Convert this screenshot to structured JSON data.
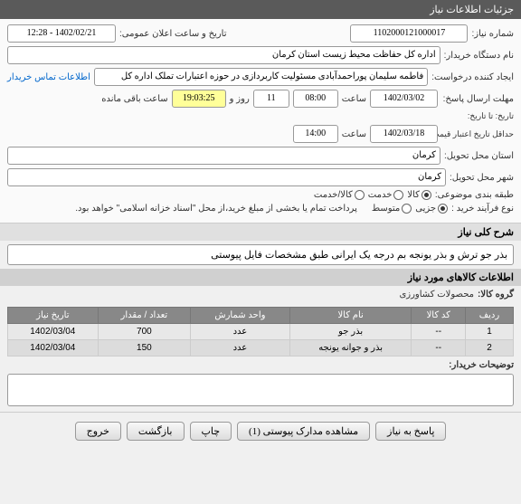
{
  "header": {
    "title": "جزئیات اطلاعات نیاز"
  },
  "fields": {
    "need_no_label": "شماره نیاز:",
    "need_no": "1102000121000017",
    "announce_label": "تاریخ و ساعت اعلان عمومی:",
    "announce": "1402/02/21 - 12:28",
    "buyer_label": "نام دستگاه خریدار:",
    "buyer": "اداره کل حفاظت محیط زیست استان کرمان",
    "requester_label": "ایجاد کننده درخواست:",
    "requester": "فاطمه سلیمان پوراحمدآبادی مسئولیت کاربردازی در حوزه اعتبارات تملک اداره کل",
    "contact_link": "اطلاعات تماس خریدار",
    "deadline_label": "مهلت ارسال پاسخ:",
    "deadline_date": "1402/03/02",
    "time_label": "ساعت",
    "deadline_time": "08:00",
    "days": "11",
    "days_label": "روز و",
    "remaining_time": "19:03:25",
    "remaining_label": "ساعت باقی مانده",
    "until_label": "تاریخ: تا تاریخ:",
    "validity_label": "حداقل تاریخ اعتبار قیمت: تا تاریخ:",
    "validity_date": "1402/03/18",
    "validity_time": "14:00",
    "location_label": "استان محل تحویل:",
    "location": "کرمان",
    "city_label": "شهر محل تحویل:",
    "city": "کرمان",
    "category_label": "طبقه بندی موضوعی:",
    "cat_goods": "کالا",
    "cat_service": "خدمت",
    "cat_goods_service": "کالا/خدمت",
    "process_label": "نوع فرآیند خرید :",
    "proc_small": "جزیی",
    "proc_medium": "متوسط",
    "payment_note": "پرداخت تمام یا بخشی از مبلغ خرید،از محل \"اسناد خزانه اسلامی\" خواهد بود."
  },
  "desc": {
    "title": "شرح کلی نیاز",
    "text": "بذر جو ترش و بذر یونجه بم درجه یک ایرانی طبق مشخصات فایل پیوستی"
  },
  "items_section": {
    "title": "اطلاعات کالاهای مورد نیاز",
    "group_label": "گروه کالا:",
    "group": "محصولات کشاورزی"
  },
  "table": {
    "headers": [
      "ردیف",
      "کد کالا",
      "نام کالا",
      "واحد شمارش",
      "تعداد / مقدار",
      "تاریخ نیاز"
    ],
    "rows": [
      [
        "1",
        "--",
        "بذر جو",
        "عدد",
        "700",
        "1402/03/04"
      ],
      [
        "2",
        "--",
        "بذر و جوانه یونجه",
        "عدد",
        "150",
        "1402/03/04"
      ]
    ]
  },
  "notes": {
    "label": "توضیحات خریدار:"
  },
  "buttons": {
    "respond": "پاسخ به نیاز",
    "attachments": "مشاهده مدارک پیوستی (1)",
    "print": "چاپ",
    "back": "بازگشت",
    "exit": "خروج"
  }
}
